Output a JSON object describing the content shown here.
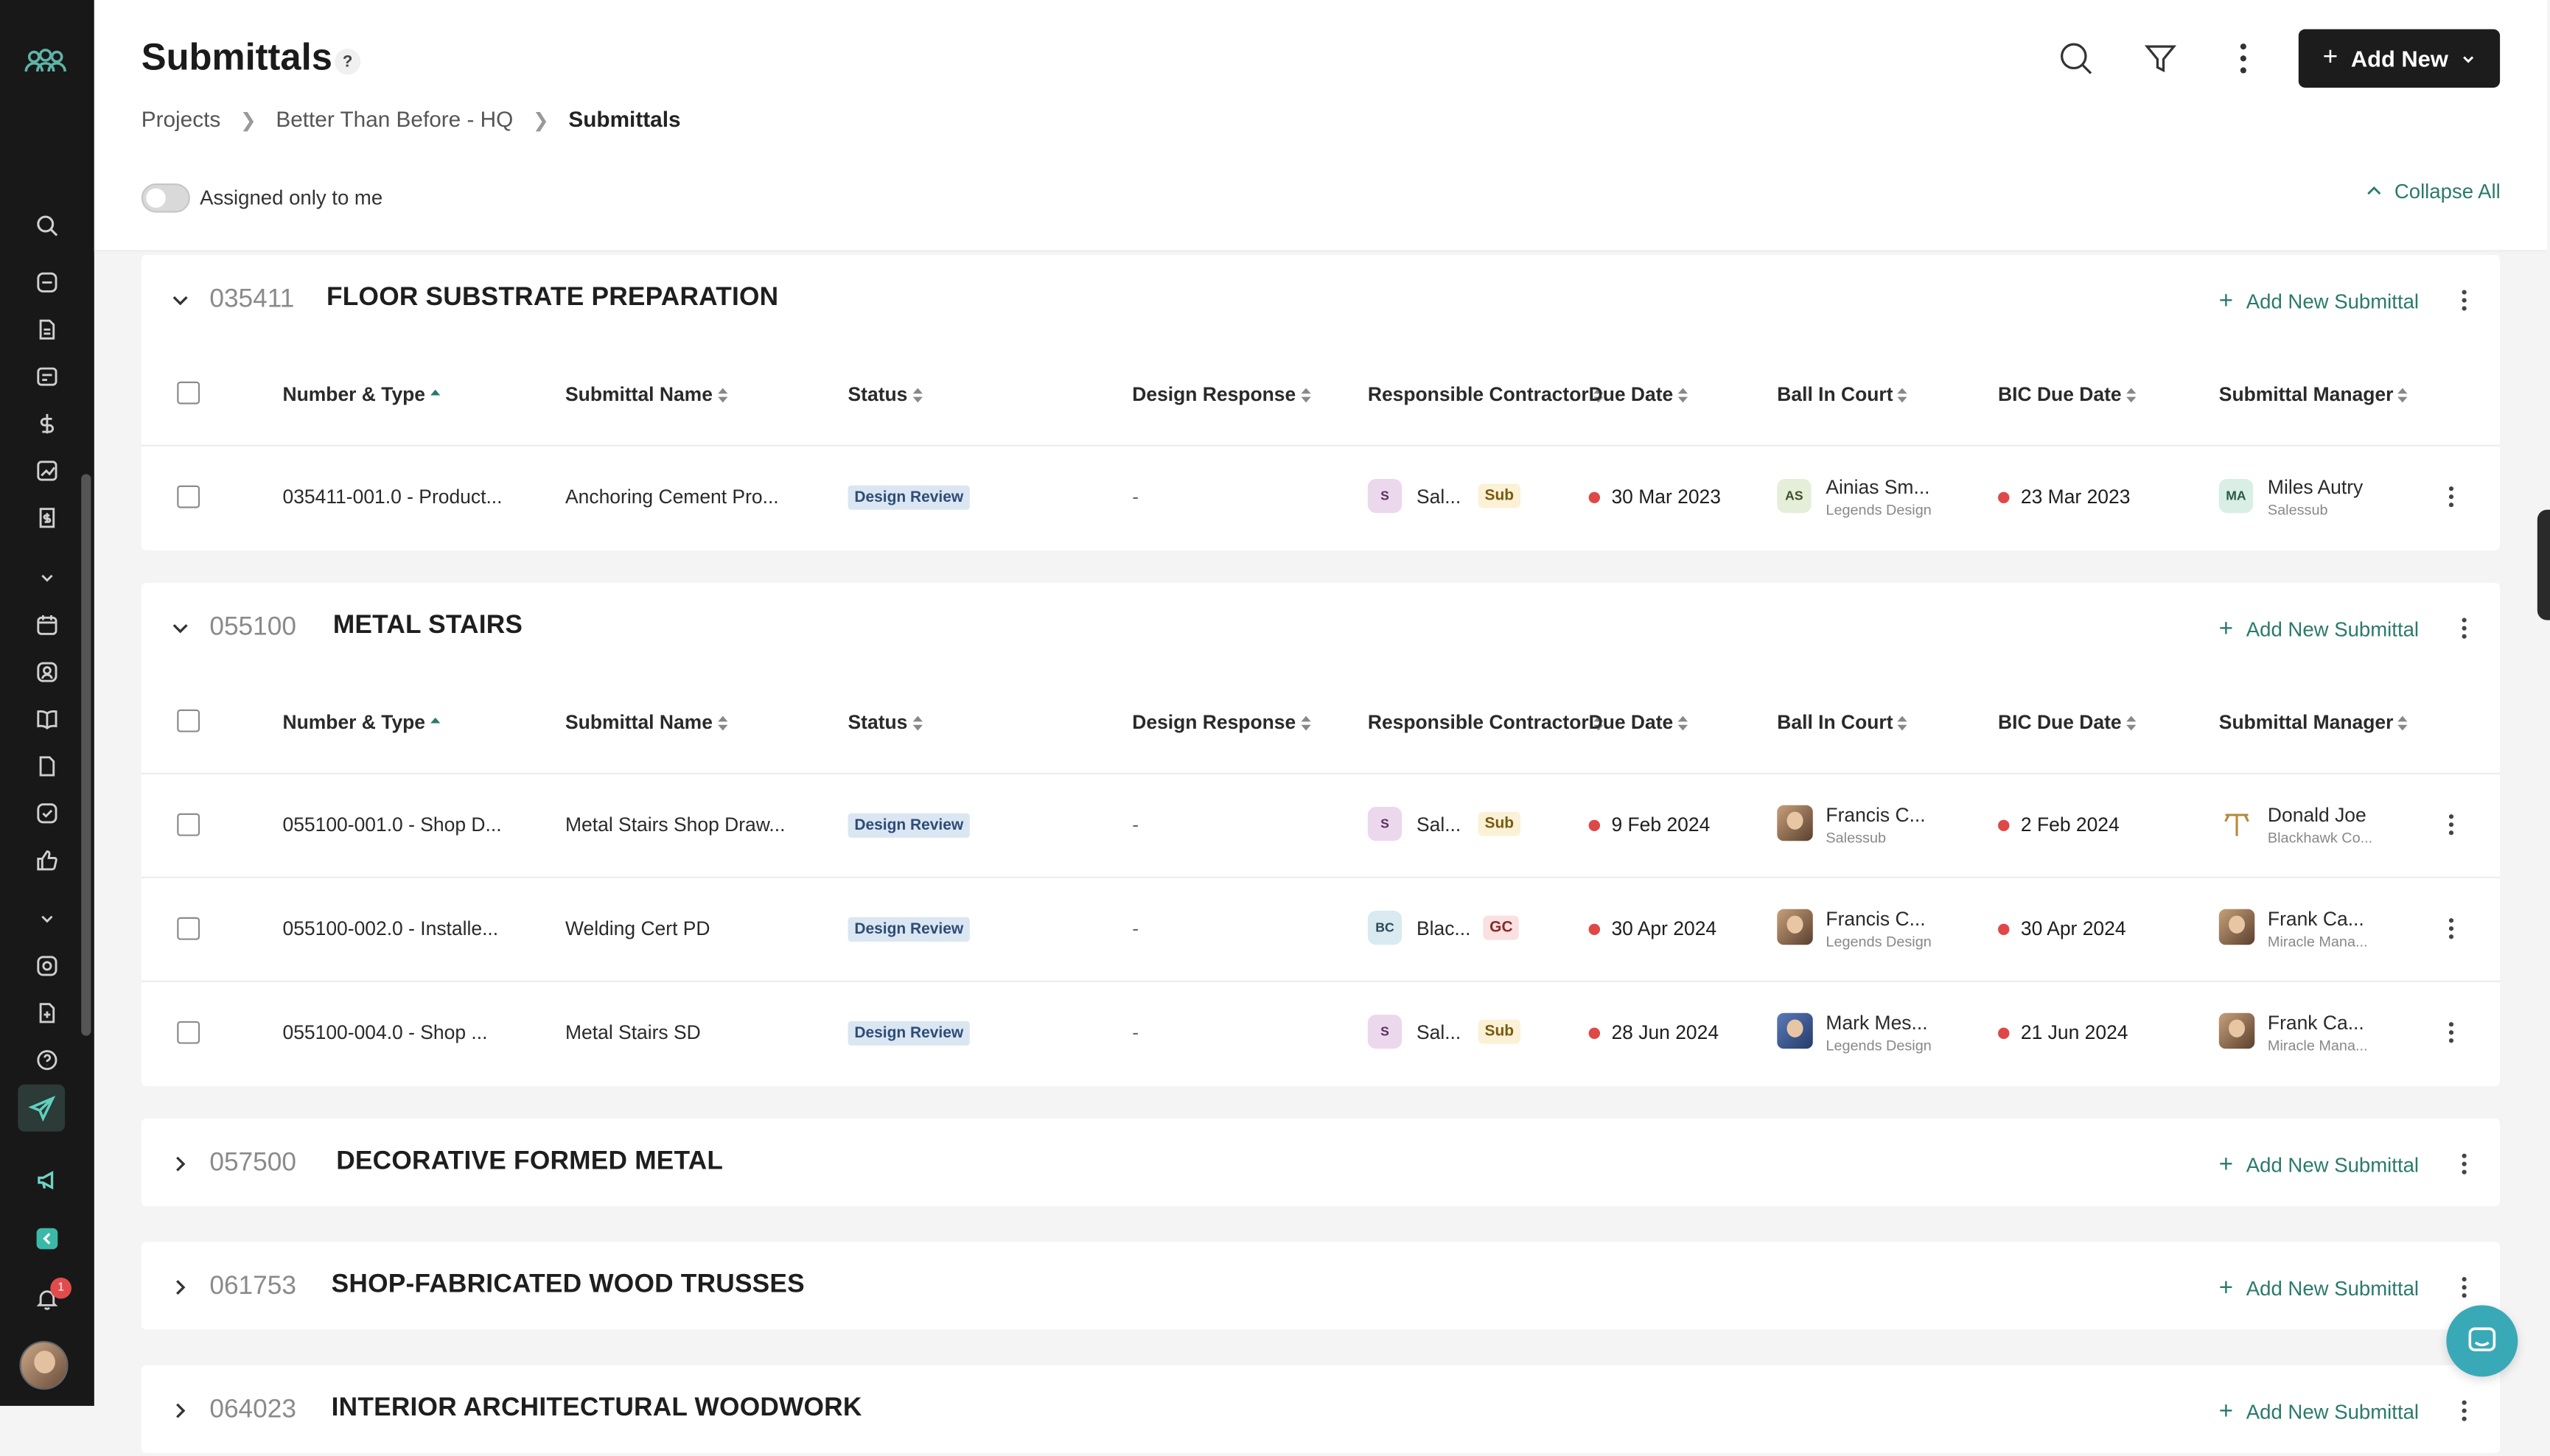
{
  "header": {
    "title": "Submittals",
    "help": "?",
    "breadcrumb": [
      "Projects",
      "Better Than Before - HQ",
      "Submittals"
    ],
    "add_new_label": "Add New",
    "toggle_label": "Assigned only to me",
    "collapse_all_label": "Collapse All"
  },
  "sidebar": {
    "notification_count": "1"
  },
  "columns": [
    "Number & Type",
    "Submittal Name",
    "Status",
    "Design Response",
    "Responsible Contractor",
    "Due Date",
    "Ball In Court",
    "BIC Due Date",
    "Submittal Manager"
  ],
  "add_submittal_label": "Add New Submittal",
  "sections": [
    {
      "code": "035411",
      "name": "FLOOR SUBSTRATE PREPARATION",
      "rows": [
        {
          "number": "035411-001.0 - Product...",
          "name": "Anchoring Cement Pro...",
          "status": "Design Review",
          "design_response": "-",
          "contractor_initials": "S",
          "contractor": "Sal...",
          "contractor_tag": "Sub",
          "due": "30 Mar 2023",
          "bic_initials": "AS",
          "bic_name": "Ainias Sm...",
          "bic_org": "Legends Design",
          "bic_due": "23 Mar 2023",
          "mgr_initials": "MA",
          "mgr_name": "Miles Autry",
          "mgr_org": "Salessub"
        }
      ]
    },
    {
      "code": "055100",
      "name": "METAL STAIRS",
      "rows": [
        {
          "number": "055100-001.0 - Shop D...",
          "name": "Metal Stairs Shop Draw...",
          "status": "Design Review",
          "design_response": "-",
          "contractor_initials": "S",
          "contractor": "Sal...",
          "contractor_tag": "Sub",
          "due": "9 Feb 2024",
          "bic_name": "Francis C...",
          "bic_org": "Salessub",
          "bic_due": "2 Feb 2024",
          "mgr_name": "Donald Joe",
          "mgr_org": "Blackhawk Co..."
        },
        {
          "number": "055100-002.0 - Installe...",
          "name": "Welding Cert PD",
          "status": "Design Review",
          "design_response": "-",
          "contractor_initials": "BC",
          "contractor": "Blac...",
          "contractor_tag": "GC",
          "due": "30 Apr 2024",
          "bic_name": "Francis C...",
          "bic_org": "Legends Design",
          "bic_due": "30 Apr 2024",
          "mgr_name": "Frank Ca...",
          "mgr_org": "Miracle Mana..."
        },
        {
          "number": "055100-004.0 - Shop ...",
          "name": "Metal Stairs SD",
          "status": "Design Review",
          "design_response": "-",
          "contractor_initials": "S",
          "contractor": "Sal...",
          "contractor_tag": "Sub",
          "due": "28 Jun 2024",
          "bic_name": "Mark Mes...",
          "bic_org": "Legends Design",
          "bic_due": "21 Jun 2024",
          "mgr_name": "Frank Ca...",
          "mgr_org": "Miracle Mana..."
        }
      ]
    },
    {
      "code": "057500",
      "name": "DECORATIVE FORMED METAL"
    },
    {
      "code": "061753",
      "name": "SHOP-FABRICATED WOOD TRUSSES"
    },
    {
      "code": "064023",
      "name": "INTERIOR ARCHITECTURAL WOODWORK"
    }
  ]
}
